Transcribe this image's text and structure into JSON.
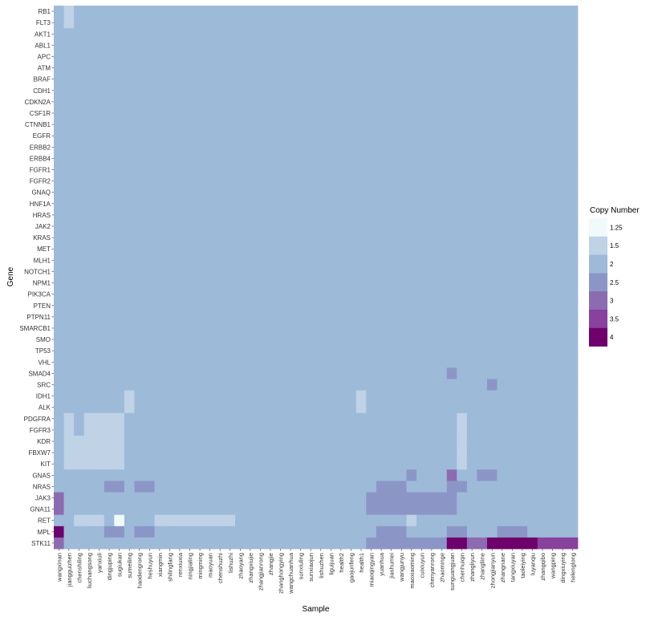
{
  "chart_data": {
    "type": "heatmap",
    "xlabel": "Sample",
    "ylabel": "Gene",
    "legend": {
      "title": "Copy Number",
      "position": "right",
      "levels": [
        {
          "label": "1.25",
          "value": 1.25,
          "color": "#f1fafa"
        },
        {
          "label": "1.5",
          "value": 1.5,
          "color": "#bfd2e6"
        },
        {
          "label": "2",
          "value": 2,
          "color": "#9ebad9"
        },
        {
          "label": "2.5",
          "value": 2.5,
          "color": "#8c96c6"
        },
        {
          "label": "3",
          "value": 3,
          "color": "#8c6bb1"
        },
        {
          "label": "3.5",
          "value": 3.5,
          "color": "#88419d"
        },
        {
          "label": "4",
          "value": 4,
          "color": "#6e016b"
        }
      ]
    },
    "samples": [
      "wangxinan",
      "jiangguizhen",
      "chenshiling",
      "liuchangsong",
      "yanxiuli",
      "dingjuping",
      "sugiukan",
      "sumeiling",
      "haodengrong",
      "heshuyun",
      "xiangmin",
      "shilingfang",
      "renxiuxia",
      "ningjialing",
      "mingming",
      "maoyuan",
      "chenshuzhi",
      "lishuzhi",
      "zhaoyang",
      "zhangxiujie",
      "zhangjianrong",
      "zhangjie",
      "zhanghongying",
      "wangchuanhua",
      "sunxiuling",
      "sunxiaojun",
      "lishuzhen",
      "liguijuan",
      "health2",
      "gaojunfeng",
      "health1",
      "miaoqingyan",
      "yuanhua",
      "jiashumei",
      "wangjunyu",
      "maoxiaoming",
      "cuixiuyun",
      "chenyanrong",
      "zhaominge",
      "sunguangjuan",
      "chenhuiqin",
      "zhangliyun",
      "zhangliine",
      "zhongjianyun",
      "zhangnane",
      "tangxiuyan",
      "taoleiying",
      "luyanqiu",
      "zhangqibo",
      "wangping",
      "dingxiuying",
      "helenglong"
    ],
    "genes": [
      "RB1",
      "FLT3",
      "AKT1",
      "ABL1",
      "APC",
      "ATM",
      "BRAF",
      "CDH1",
      "CDKN2A",
      "CSF1R",
      "CTNNB1",
      "EGFR",
      "ERBB2",
      "ERBB4",
      "FGFR1",
      "FGFR2",
      "GNAQ",
      "HNF1A",
      "HRAS",
      "JAK2",
      "KRAS",
      "MET",
      "MLH1",
      "NOTCH1",
      "NPM1",
      "PIK3CA",
      "PTEN",
      "PTPN11",
      "SMARCB1",
      "SMO",
      "TP53",
      "VHL",
      "SMAD4",
      "SRC",
      "IDH1",
      "ALK",
      "PDGFRA",
      "FGFR3",
      "KDR",
      "FBXW7",
      "KIT",
      "GNAS",
      "NRAS",
      "JAK3",
      "GNA11",
      "RET",
      "MPL",
      "STK11"
    ],
    "default_value": 2,
    "cells": [
      {
        "gene": "RB1",
        "sample": "jiangguizhen",
        "value": 1.5
      },
      {
        "gene": "FLT3",
        "sample": "jiangguizhen",
        "value": 1.5
      },
      {
        "gene": "SMAD4",
        "sample": "sunguangjuan",
        "value": 2.5
      },
      {
        "gene": "SRC",
        "sample": "zhongjianyun",
        "value": 2.5
      },
      {
        "gene": "IDH1",
        "sample": "sumeiling",
        "value": 1.5
      },
      {
        "gene": "IDH1",
        "sample": "health1",
        "value": 1.5
      },
      {
        "gene": "ALK",
        "sample": "sumeiling",
        "value": 1.5
      },
      {
        "gene": "ALK",
        "sample": "health1",
        "value": 1.5
      },
      {
        "gene": "PDGFRA",
        "sample": "jiangguizhen",
        "value": 1.5
      },
      {
        "gene": "PDGFRA",
        "sample": "liuchangsong",
        "value": 1.5
      },
      {
        "gene": "PDGFRA",
        "sample": "yanxiuli",
        "value": 1.5
      },
      {
        "gene": "PDGFRA",
        "sample": "dingjuping",
        "value": 1.5
      },
      {
        "gene": "PDGFRA",
        "sample": "sugiukan",
        "value": 1.5
      },
      {
        "gene": "PDGFRA",
        "sample": "chenhuiqin",
        "value": 1.5
      },
      {
        "gene": "FGFR3",
        "sample": "jiangguizhen",
        "value": 1.5
      },
      {
        "gene": "FGFR3",
        "sample": "liuchangsong",
        "value": 1.5
      },
      {
        "gene": "FGFR3",
        "sample": "yanxiuli",
        "value": 1.5
      },
      {
        "gene": "FGFR3",
        "sample": "dingjuping",
        "value": 1.5
      },
      {
        "gene": "FGFR3",
        "sample": "sugiukan",
        "value": 1.5
      },
      {
        "gene": "FGFR3",
        "sample": "chenhuiqin",
        "value": 1.5
      },
      {
        "gene": "KDR",
        "sample": "jiangguizhen",
        "value": 1.5
      },
      {
        "gene": "KDR",
        "sample": "chenshiling",
        "value": 1.5
      },
      {
        "gene": "KDR",
        "sample": "liuchangsong",
        "value": 1.5
      },
      {
        "gene": "KDR",
        "sample": "yanxiuli",
        "value": 1.5
      },
      {
        "gene": "KDR",
        "sample": "dingjuping",
        "value": 1.5
      },
      {
        "gene": "KDR",
        "sample": "sugiukan",
        "value": 1.5
      },
      {
        "gene": "KDR",
        "sample": "chenhuiqin",
        "value": 1.5
      },
      {
        "gene": "FBXW7",
        "sample": "jiangguizhen",
        "value": 1.5
      },
      {
        "gene": "FBXW7",
        "sample": "chenshiling",
        "value": 1.5
      },
      {
        "gene": "FBXW7",
        "sample": "liuchangsong",
        "value": 1.5
      },
      {
        "gene": "FBXW7",
        "sample": "yanxiuli",
        "value": 1.5
      },
      {
        "gene": "FBXW7",
        "sample": "dingjuping",
        "value": 1.5
      },
      {
        "gene": "FBXW7",
        "sample": "sugiukan",
        "value": 1.5
      },
      {
        "gene": "FBXW7",
        "sample": "chenhuiqin",
        "value": 1.5
      },
      {
        "gene": "KIT",
        "sample": "jiangguizhen",
        "value": 1.5
      },
      {
        "gene": "KIT",
        "sample": "chenshiling",
        "value": 1.5
      },
      {
        "gene": "KIT",
        "sample": "liuchangsong",
        "value": 1.5
      },
      {
        "gene": "KIT",
        "sample": "yanxiuli",
        "value": 1.5
      },
      {
        "gene": "KIT",
        "sample": "dingjuping",
        "value": 1.5
      },
      {
        "gene": "KIT",
        "sample": "sugiukan",
        "value": 1.5
      },
      {
        "gene": "KIT",
        "sample": "chenhuiqin",
        "value": 1.5
      },
      {
        "gene": "GNAS",
        "sample": "maoxiaoming",
        "value": 2.5
      },
      {
        "gene": "GNAS",
        "sample": "sunguangjuan",
        "value": 3
      },
      {
        "gene": "GNAS",
        "sample": "zhangliine",
        "value": 2.5
      },
      {
        "gene": "GNAS",
        "sample": "zhongjianyun",
        "value": 2.5
      },
      {
        "gene": "NRAS",
        "sample": "dingjuping",
        "value": 2.5
      },
      {
        "gene": "NRAS",
        "sample": "sugiukan",
        "value": 2.5
      },
      {
        "gene": "NRAS",
        "sample": "haodengrong",
        "value": 2.5
      },
      {
        "gene": "NRAS",
        "sample": "heshuyun",
        "value": 2.5
      },
      {
        "gene": "NRAS",
        "sample": "yuanhua",
        "value": 2.5
      },
      {
        "gene": "NRAS",
        "sample": "jiashumei",
        "value": 2.5
      },
      {
        "gene": "NRAS",
        "sample": "wangjunyu",
        "value": 2.5
      },
      {
        "gene": "NRAS",
        "sample": "sunguangjuan",
        "value": 2.5
      },
      {
        "gene": "NRAS",
        "sample": "chenhuiqin",
        "value": 2.5
      },
      {
        "gene": "JAK3",
        "sample": "wangxinan",
        "value": 3
      },
      {
        "gene": "JAK3",
        "sample": "miaoqingyan",
        "value": 2.5
      },
      {
        "gene": "JAK3",
        "sample": "yuanhua",
        "value": 2.5
      },
      {
        "gene": "JAK3",
        "sample": "jiashumei",
        "value": 2.5
      },
      {
        "gene": "JAK3",
        "sample": "wangjunyu",
        "value": 2.5
      },
      {
        "gene": "JAK3",
        "sample": "maoxiaoming",
        "value": 2.5
      },
      {
        "gene": "JAK3",
        "sample": "cuixiuyun",
        "value": 2.5
      },
      {
        "gene": "JAK3",
        "sample": "chenyanrong",
        "value": 2.5
      },
      {
        "gene": "JAK3",
        "sample": "zhaominge",
        "value": 2.5
      },
      {
        "gene": "JAK3",
        "sample": "sunguangjuan",
        "value": 2.5
      },
      {
        "gene": "GNA11",
        "sample": "wangxinan",
        "value": 3
      },
      {
        "gene": "GNA11",
        "sample": "miaoqingyan",
        "value": 2.5
      },
      {
        "gene": "GNA11",
        "sample": "yuanhua",
        "value": 2.5
      },
      {
        "gene": "GNA11",
        "sample": "jiashumei",
        "value": 2.5
      },
      {
        "gene": "GNA11",
        "sample": "wangjunyu",
        "value": 2.5
      },
      {
        "gene": "GNA11",
        "sample": "maoxiaoming",
        "value": 2.5
      },
      {
        "gene": "GNA11",
        "sample": "cuixiuyun",
        "value": 2.5
      },
      {
        "gene": "GNA11",
        "sample": "chenyanrong",
        "value": 2.5
      },
      {
        "gene": "GNA11",
        "sample": "zhaominge",
        "value": 2.5
      },
      {
        "gene": "GNA11",
        "sample": "sunguangjuan",
        "value": 2.5
      },
      {
        "gene": "RET",
        "sample": "chenshiling",
        "value": 1.5
      },
      {
        "gene": "RET",
        "sample": "liuchangsong",
        "value": 1.5
      },
      {
        "gene": "RET",
        "sample": "yanxiuli",
        "value": 1.5
      },
      {
        "gene": "RET",
        "sample": "sugiukan",
        "value": 1.25
      },
      {
        "gene": "RET",
        "sample": "xiangmin",
        "value": 1.5
      },
      {
        "gene": "RET",
        "sample": "shilingfang",
        "value": 1.5
      },
      {
        "gene": "RET",
        "sample": "renxiuxia",
        "value": 1.5
      },
      {
        "gene": "RET",
        "sample": "ningjialing",
        "value": 1.5
      },
      {
        "gene": "RET",
        "sample": "mingming",
        "value": 1.5
      },
      {
        "gene": "RET",
        "sample": "maoyuan",
        "value": 1.5
      },
      {
        "gene": "RET",
        "sample": "chenshuzhi",
        "value": 1.5
      },
      {
        "gene": "RET",
        "sample": "lishuzhi",
        "value": 1.5
      },
      {
        "gene": "RET",
        "sample": "maoxiaoming",
        "value": 1.5
      },
      {
        "gene": "MPL",
        "sample": "wangxinan",
        "value": 4
      },
      {
        "gene": "MPL",
        "sample": "dingjuping",
        "value": 2.5
      },
      {
        "gene": "MPL",
        "sample": "sugiukan",
        "value": 2.5
      },
      {
        "gene": "MPL",
        "sample": "haodengrong",
        "value": 2.5
      },
      {
        "gene": "MPL",
        "sample": "heshuyun",
        "value": 2.5
      },
      {
        "gene": "MPL",
        "sample": "yuanhua",
        "value": 2.5
      },
      {
        "gene": "MPL",
        "sample": "jiashumei",
        "value": 2.5
      },
      {
        "gene": "MPL",
        "sample": "wangjunyu",
        "value": 2.5
      },
      {
        "gene": "MPL",
        "sample": "sunguangjuan",
        "value": 2.5
      },
      {
        "gene": "MPL",
        "sample": "chenhuiqin",
        "value": 2.5
      },
      {
        "gene": "MPL",
        "sample": "zhangnane",
        "value": 2.5
      },
      {
        "gene": "MPL",
        "sample": "tangxiuyan",
        "value": 2.5
      },
      {
        "gene": "MPL",
        "sample": "taoleiying",
        "value": 2.5
      },
      {
        "gene": "STK11",
        "sample": "wangxinan",
        "value": 3
      },
      {
        "gene": "STK11",
        "sample": "miaoqingyan",
        "value": 2.5
      },
      {
        "gene": "STK11",
        "sample": "yuanhua",
        "value": 2.5
      },
      {
        "gene": "STK11",
        "sample": "jiashumei",
        "value": 2.5
      },
      {
        "gene": "STK11",
        "sample": "wangjunyu",
        "value": 2.5
      },
      {
        "gene": "STK11",
        "sample": "maoxiaoming",
        "value": 2.5
      },
      {
        "gene": "STK11",
        "sample": "cuixiuyun",
        "value": 2.5
      },
      {
        "gene": "STK11",
        "sample": "chenyanrong",
        "value": 2.5
      },
      {
        "gene": "STK11",
        "sample": "zhaominge",
        "value": 2.5
      },
      {
        "gene": "STK11",
        "sample": "sunguangjuan",
        "value": 4
      },
      {
        "gene": "STK11",
        "sample": "chenhuiqin",
        "value": 4
      },
      {
        "gene": "STK11",
        "sample": "zhangliyun",
        "value": 3
      },
      {
        "gene": "STK11",
        "sample": "zhangliine",
        "value": 3
      },
      {
        "gene": "STK11",
        "sample": "zhongjianyun",
        "value": 4
      },
      {
        "gene": "STK11",
        "sample": "zhangnane",
        "value": 4
      },
      {
        "gene": "STK11",
        "sample": "tangxiuyan",
        "value": 4
      },
      {
        "gene": "STK11",
        "sample": "taoleiying",
        "value": 4
      },
      {
        "gene": "STK11",
        "sample": "luyanqiu",
        "value": 4
      },
      {
        "gene": "STK11",
        "sample": "zhangqibo",
        "value": 3.5
      },
      {
        "gene": "STK11",
        "sample": "wangping",
        "value": 3.5
      },
      {
        "gene": "STK11",
        "sample": "dingxiuying",
        "value": 3.5
      },
      {
        "gene": "STK11",
        "sample": "helenglong",
        "value": 3.5
      }
    ]
  }
}
